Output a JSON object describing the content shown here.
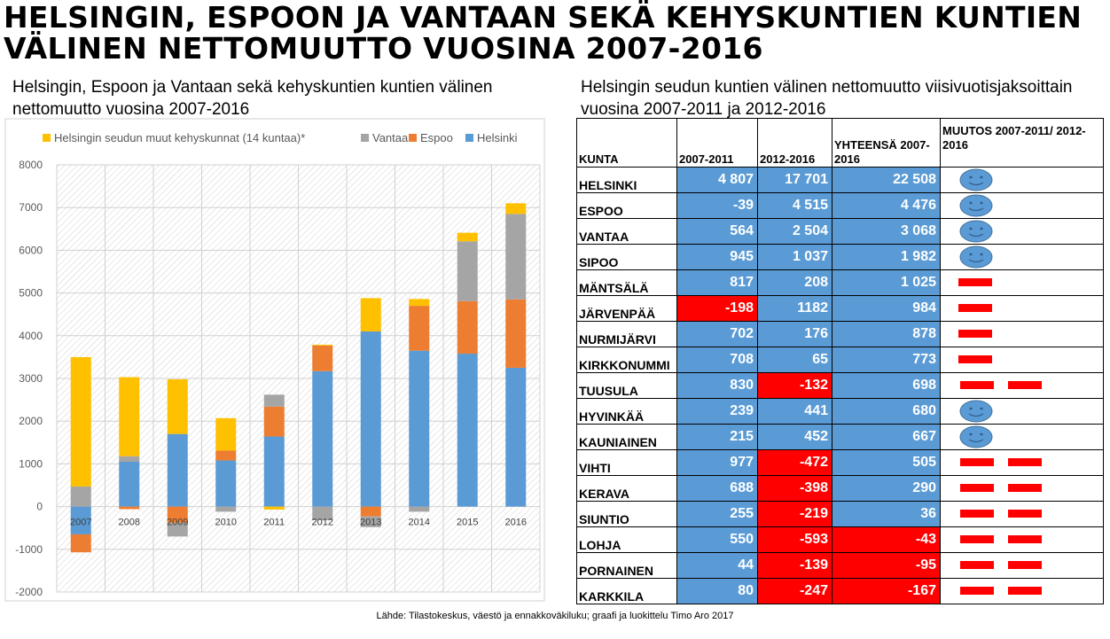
{
  "title": "HELSINGIN, ESPOON JA VANTAAN SEKÄ KEHYSKUNTIEN KUNTIEN VÄLINEN NETTOMUUTTO VUOSINA 2007-2016",
  "left_subtitle": "Helsingin, Espoon ja Vantaan sekä kehyskuntien kuntien välinen nettomuutto vuosina 2007-2016",
  "right_subtitle": "Helsingin seudun kuntien välinen nettomuutto viisivuotisjaksoittain vuosina 2007-2011 ja 2012-2016",
  "source": "Lähde: Tilastokeskus, väestö ja ennakkoväkiluku; graafi ja luokittelu Timo Aro 2017",
  "colors": {
    "helsinki": "#5b9bd5",
    "espoo": "#ed7d31",
    "vantaa": "#a5a5a5",
    "kehys": "#ffc000",
    "negative": "#ff0000"
  },
  "chart_data": {
    "type": "bar",
    "stacked": true,
    "categories": [
      "2007",
      "2008",
      "2009",
      "2010",
      "2011",
      "2012",
      "2013",
      "2014",
      "2015",
      "2016"
    ],
    "series": [
      {
        "name": "Helsinki",
        "color": "#5b9bd5",
        "values": [
          -650,
          1050,
          1700,
          1080,
          1640,
          3170,
          4100,
          3650,
          3580,
          3250
        ]
      },
      {
        "name": "Espoo",
        "color": "#ed7d31",
        "values": [
          -420,
          -60,
          -380,
          230,
          700,
          600,
          -230,
          1050,
          1230,
          1600
        ]
      },
      {
        "name": "Vantaa",
        "color": "#a5a5a5",
        "values": [
          470,
          130,
          -320,
          -120,
          280,
          -320,
          -250,
          -120,
          1400,
          2000
        ]
      },
      {
        "name": "Helsingin seudun muut kehyskunnat (14 kuntaa)*",
        "color": "#ffc000",
        "values": [
          3030,
          1850,
          1280,
          760,
          -70,
          20,
          780,
          160,
          200,
          250
        ]
      }
    ],
    "legend_order": [
      3,
      2,
      1,
      0
    ],
    "ylim": [
      -2000,
      8000
    ],
    "yticks": [
      "-2000",
      "-1000",
      "0",
      "1000",
      "2000",
      "3000",
      "4000",
      "5000",
      "6000",
      "7000",
      "8000"
    ],
    "legend_position": "top",
    "grid": true
  },
  "table": {
    "headers": {
      "kunta": "KUNTA",
      "p1": "2007-2011",
      "p2": "2012-2016",
      "total": "YHTEENSÄ 2007-2016",
      "change": "MUUTOS 2007-2011/ 2012-2016"
    },
    "rows": [
      {
        "name": "HELSINKI",
        "p1": "4 807",
        "p2": "17 701",
        "total": "22 508",
        "p1_neg": false,
        "p2_neg": false,
        "t_neg": false,
        "change": "smiley",
        "dashes": 0
      },
      {
        "name": "ESPOO",
        "p1": "-39",
        "p2": "4 515",
        "total": "4 476",
        "p1_neg": false,
        "p2_neg": false,
        "t_neg": false,
        "change": "smiley",
        "dashes": 0
      },
      {
        "name": "VANTAA",
        "p1": "564",
        "p2": "2 504",
        "total": "3 068",
        "p1_neg": false,
        "p2_neg": false,
        "t_neg": false,
        "change": "smiley",
        "dashes": 0
      },
      {
        "name": "SIPOO",
        "p1": "945",
        "p2": "1 037",
        "total": "1 982",
        "p1_neg": false,
        "p2_neg": false,
        "t_neg": false,
        "change": "smiley",
        "dashes": 0
      },
      {
        "name": "MÄNTSÄLÄ",
        "p1": "817",
        "p2": "208",
        "total": "1 025",
        "p1_neg": false,
        "p2_neg": false,
        "t_neg": false,
        "change": "dash",
        "dashes": 1
      },
      {
        "name": "JÄRVENPÄÄ",
        "p1": "-198",
        "p2": "1182",
        "total": "984",
        "p1_neg": true,
        "p2_neg": false,
        "t_neg": false,
        "change": "dash",
        "dashes": 1
      },
      {
        "name": "NURMIJÄRVI",
        "p1": "702",
        "p2": "176",
        "total": "878",
        "p1_neg": false,
        "p2_neg": false,
        "t_neg": false,
        "change": "dash",
        "dashes": 1
      },
      {
        "name": "KIRKKONUMMI",
        "p1": "708",
        "p2": "65",
        "total": "773",
        "p1_neg": false,
        "p2_neg": false,
        "t_neg": false,
        "change": "dash",
        "dashes": 1
      },
      {
        "name": "TUUSULA",
        "p1": "830",
        "p2": "-132",
        "total": "698",
        "p1_neg": false,
        "p2_neg": true,
        "t_neg": false,
        "change": "dash",
        "dashes": 2
      },
      {
        "name": "HYVINKÄÄ",
        "p1": "239",
        "p2": "441",
        "total": "680",
        "p1_neg": false,
        "p2_neg": false,
        "t_neg": false,
        "change": "smiley",
        "dashes": 0
      },
      {
        "name": "KAUNIAINEN",
        "p1": "215",
        "p2": "452",
        "total": "667",
        "p1_neg": false,
        "p2_neg": false,
        "t_neg": false,
        "change": "smiley",
        "dashes": 0
      },
      {
        "name": "VIHTI",
        "p1": "977",
        "p2": "-472",
        "total": "505",
        "p1_neg": false,
        "p2_neg": true,
        "t_neg": false,
        "change": "dash",
        "dashes": 2
      },
      {
        "name": "KERAVA",
        "p1": "688",
        "p2": "-398",
        "total": "290",
        "p1_neg": false,
        "p2_neg": true,
        "t_neg": false,
        "change": "dash",
        "dashes": 2
      },
      {
        "name": "SIUNTIO",
        "p1": "255",
        "p2": "-219",
        "total": "36",
        "p1_neg": false,
        "p2_neg": true,
        "t_neg": false,
        "change": "dash",
        "dashes": 2
      },
      {
        "name": "LOHJA",
        "p1": "550",
        "p2": "-593",
        "total": "-43",
        "p1_neg": false,
        "p2_neg": true,
        "t_neg": true,
        "change": "dash",
        "dashes": 2
      },
      {
        "name": "PORNAINEN",
        "p1": "44",
        "p2": "-139",
        "total": "-95",
        "p1_neg": false,
        "p2_neg": true,
        "t_neg": true,
        "change": "dash",
        "dashes": 2
      },
      {
        "name": "KARKKILA",
        "p1": "80",
        "p2": "-247",
        "total": "-167",
        "p1_neg": false,
        "p2_neg": true,
        "t_neg": true,
        "change": "dash",
        "dashes": 2
      }
    ]
  }
}
